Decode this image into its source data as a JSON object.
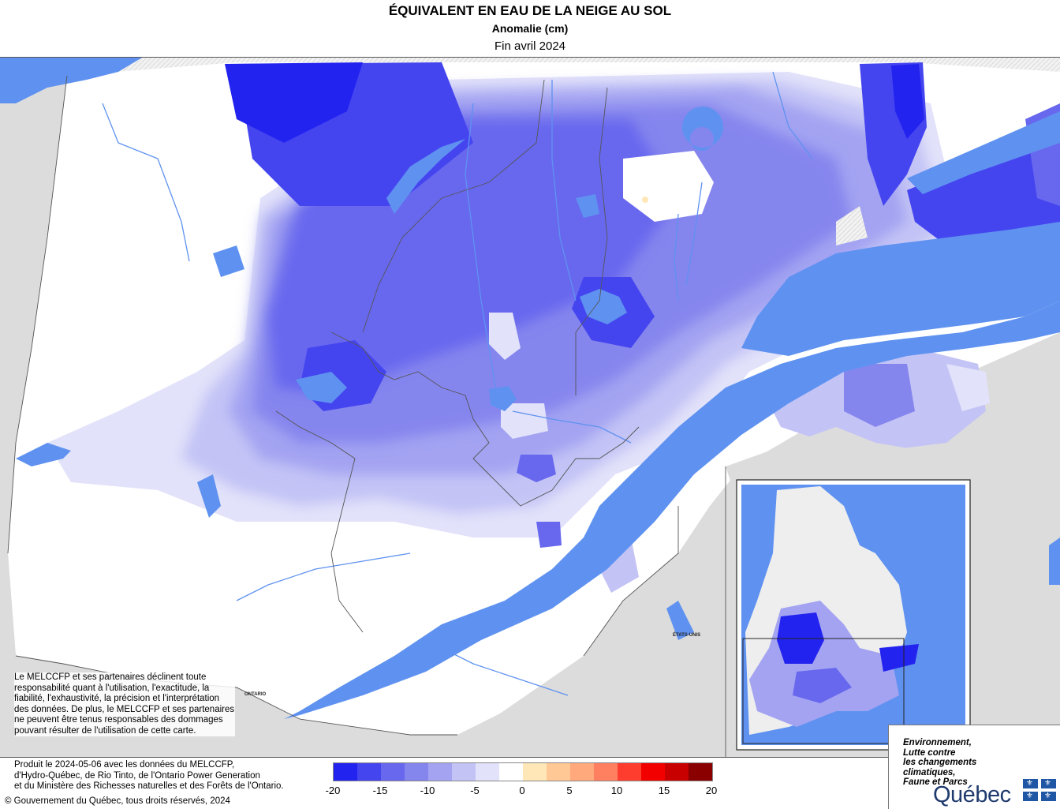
{
  "header": {
    "title": "ÉQUIVALENT EN EAU DE LA NEIGE AU SOL",
    "subtitle": "Anomalie (cm)",
    "period": "Fin avril 2024"
  },
  "map_labels": {
    "ontario": "ONTARIO",
    "usa": "ÉTATS-UNIS"
  },
  "disclaimer": "Le MELCCFP et ses partenaires déclinent toute responsabilité quant à l'utilisation, l'exactitude, la fiabilité, l'exhaustivité, la précision et l'interprétation des données. De plus, le MELCCFP et ses partenaires ne peuvent être tenus responsables des dommages pouvant résulter de l'utilisation de cette carte.",
  "credits": {
    "line1": "Produit le 2024-05-06 avec les données du MELCCFP,",
    "line2": "d'Hydro-Québec, de Rio Tinto, de l'Ontario Power Generation",
    "line3": "et du Ministère des Richesses naturelles et des Forêts de l'Ontario."
  },
  "copyright": "© Gouvernement du Québec, tous droits réservés, 2024",
  "legend": {
    "colors": [
      "#2323f0",
      "#4545f0",
      "#6868ef",
      "#8585ee",
      "#a3a3f2",
      "#c3c3f6",
      "#e2e2fa",
      "#ffffff",
      "#ffe7b7",
      "#ffc894",
      "#ffa97d",
      "#ff7f61",
      "#ff3d2e",
      "#f20000",
      "#c80000",
      "#8a0000"
    ],
    "ticks": [
      "-20",
      "-15",
      "-10",
      "-5",
      "0",
      "5",
      "10",
      "15",
      "20"
    ]
  },
  "logo": {
    "line1": "Environnement,",
    "line2": "Lutte contre",
    "line3": "les changements",
    "line4": "climatiques,",
    "line5": "Faune et Parcs",
    "brand": "Québec"
  }
}
